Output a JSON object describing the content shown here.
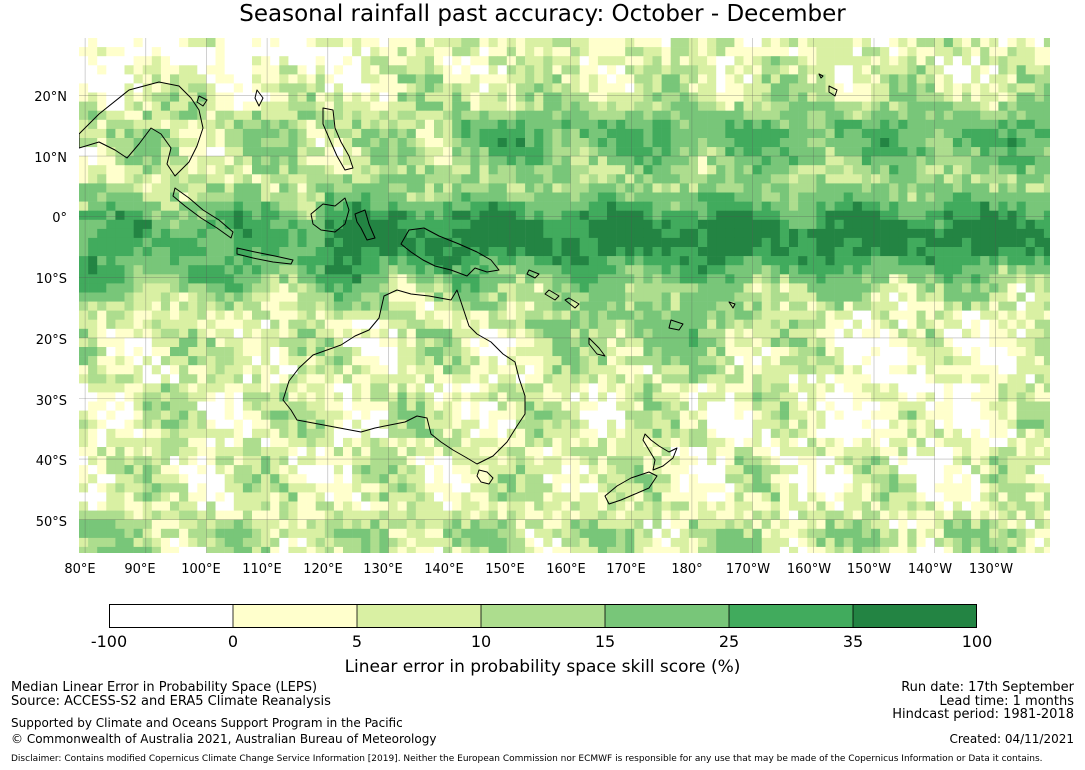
{
  "title": "Seasonal rainfall past accuracy: October - December",
  "map": {
    "lat_labels": [
      "20°N",
      "10°N",
      "0°",
      "10°S",
      "20°S",
      "30°S",
      "40°S",
      "50°S"
    ],
    "lon_labels": [
      "80°E",
      "90°E",
      "100°E",
      "110°E",
      "120°E",
      "130°E",
      "140°E",
      "150°E",
      "160°E",
      "170°E",
      "180°",
      "170°W",
      "160°W",
      "150°W",
      "140°W",
      "130°W"
    ],
    "lat_range": [
      -55.5,
      29.5
    ],
    "lon_range": [
      79,
      239
    ],
    "lat_lines": [
      20,
      10,
      0,
      -10,
      -20,
      -30,
      -40,
      -50
    ],
    "lon_lines": [
      80,
      90,
      100,
      110,
      120,
      130,
      140,
      150,
      160,
      170,
      180,
      190,
      200,
      210,
      220,
      230
    ]
  },
  "colorbar": {
    "tick_labels": [
      "-100",
      "0",
      "5",
      "10",
      "15",
      "25",
      "35",
      "100"
    ],
    "colors": [
      "#ffffff",
      "#ffffcc",
      "#d9f0a3",
      "#addd8e",
      "#78c679",
      "#41ab5d",
      "#238443"
    ],
    "label": "Linear error in probability space skill score (%)"
  },
  "footer": {
    "left": {
      "line1": "Median Linear Error in Probability Space (LEPS)",
      "line2": "Source: ACCESS-S2 and ERA5 Climate Reanalysis",
      "line3": "Supported by Climate and Oceans Support Program in the Pacific",
      "line4": "© Commonwealth of Australia 2021, Australian Bureau of Meteorology"
    },
    "right": {
      "run_date": "Run date: 17th September",
      "lead_time": "Lead time: 1 months",
      "hindcast": "Hindcast period: 1981-2018",
      "created": "Created: 04/11/2021"
    },
    "disclaimer": "Disclaimer: Contains modified Copernicus Climate Change Service Information [2019]. Neither the European Commission nor ECMWF is responsible for any use that may be made of the Copernicus Information or Data it contains."
  }
}
